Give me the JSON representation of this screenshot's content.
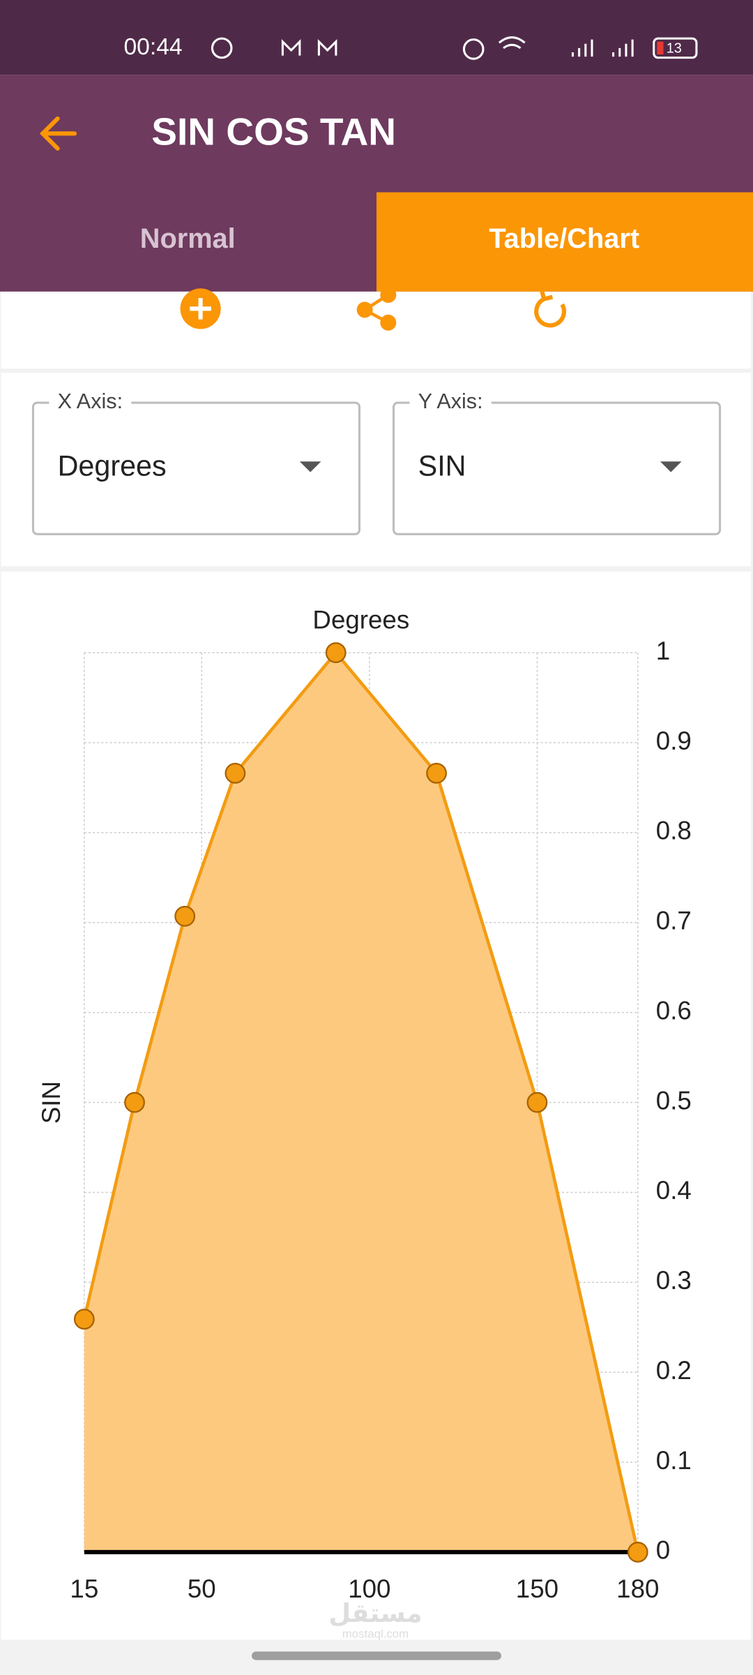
{
  "status_bar": {
    "time": "00:44",
    "battery": "13"
  },
  "app_bar": {
    "title": "SIN COS TAN"
  },
  "tabs": [
    "Normal",
    "Table/Chart"
  ],
  "selectors": [
    {
      "label": "X Axis:",
      "value": "Degrees"
    },
    {
      "label": "Y Axis:",
      "value": "SIN"
    }
  ],
  "chart_data": {
    "type": "area",
    "x_label": "Degrees",
    "y_label": "SIN",
    "x": [
      15,
      30,
      45,
      60,
      90,
      120,
      150,
      180
    ],
    "values": [
      0.259,
      0.5,
      0.707,
      0.866,
      1,
      0.866,
      0.5,
      0
    ],
    "color": "#f39c12",
    "fill_color": "#fdc97f",
    "xlim": [
      15,
      180
    ],
    "xticks": [
      15,
      50,
      100,
      150,
      180
    ],
    "ylim": [
      0,
      1
    ],
    "yticks": [
      0,
      0.1,
      0.2,
      0.3,
      0.4,
      0.5,
      0.6,
      0.7,
      0.8,
      0.9,
      1
    ],
    "grid": true,
    "y_axis_side": "right",
    "x_label_side": "top"
  },
  "watermark": {
    "name": "مستقل",
    "url": "mostaql.com"
  }
}
